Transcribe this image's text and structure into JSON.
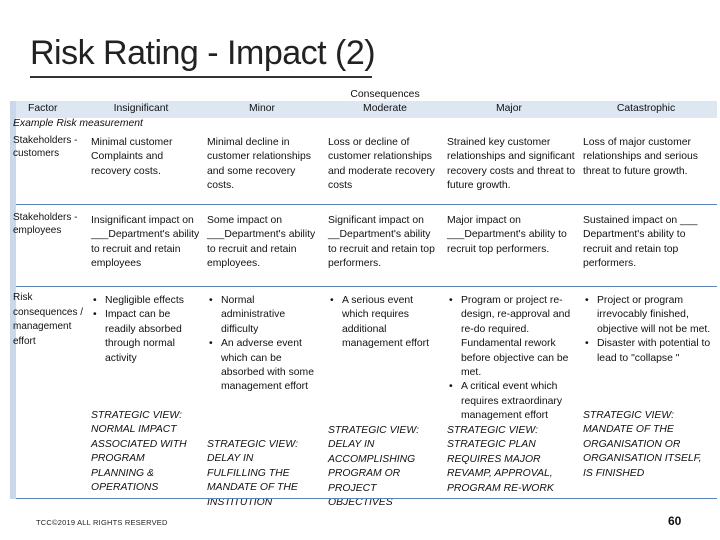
{
  "title": "Risk Rating - Impact (2)",
  "header": {
    "factor": "Factor",
    "consequences": "Consequences",
    "columns": [
      "Insignificant",
      "Minor",
      "Moderate",
      "Major",
      "Catastrophic"
    ],
    "example": "Example Risk measurement"
  },
  "rows": [
    {
      "factor": "Stakeholders - customers",
      "cells": [
        "Minimal customer Complaints and recovery costs.",
        "Minimal decline in customer relationships and some recovery costs.",
        "Loss or decline of customer relationships and moderate recovery costs",
        "Strained key customer relationships and significant recovery costs and threat to future growth.",
        "Loss of major customer relationships and serious threat to future growth."
      ]
    },
    {
      "factor": "Stakeholders - employees",
      "cells": [
        "Insignificant impact on ___Department's ability to recruit and retain employees",
        "Some impact on ___Department's ability to recruit and retain employees.",
        "Significant impact on __Department's ability to recruit and retain top performers.",
        "Major impact on ___Department's ability to recruit top performers.",
        "Sustained impact on ___ Department's ability to recruit and retain top performers."
      ]
    },
    {
      "factor": "Risk consequences / management effort",
      "cells": [
        {
          "bullets": [
            "Negligible effects",
            "Impact can be readily absorbed through normal activity"
          ],
          "strategic": "STRATEGIC VIEW: NORMAL IMPACT ASSOCIATED WITH PROGRAM PLANNING & OPERATIONS"
        },
        {
          "bullets": [
            "Normal administrative difficulty",
            "An adverse event which can be absorbed with some management effort"
          ],
          "strategic": "STRATEGIC VIEW: DELAY IN FULFILLING THE MANDATE OF THE INSTITUTION"
        },
        {
          "bullets": [
            "A serious event which requires additional management effort"
          ],
          "strategic": "STRATEGIC VIEW: DELAY IN ACCOMPLISHING PROGRAM OR PROJECT OBJECTIVES"
        },
        {
          "bullets": [
            "Program or project re-design, re-approval and re-do required. Fundamental rework before objective can be met.",
            "A critical event which requires extraordinary management effort"
          ],
          "strategic": "STRATEGIC VIEW: STRATEGIC PLAN REQUIRES MAJOR REVAMP, APPROVAL, PROGRAM RE-WORK"
        },
        {
          "bullets": [
            "Project or program irrevocably finished, objective will not be met.",
            "Disaster with potential to lead to \"collapse \""
          ],
          "strategic": "STRATEGIC VIEW: MANDATE OF THE ORGANISATION OR ORGANISATION ITSELF, IS FINISHED"
        }
      ]
    }
  ],
  "footer": "TCC©2019 ALL RIGHTS RESERVED",
  "page_number": "60"
}
